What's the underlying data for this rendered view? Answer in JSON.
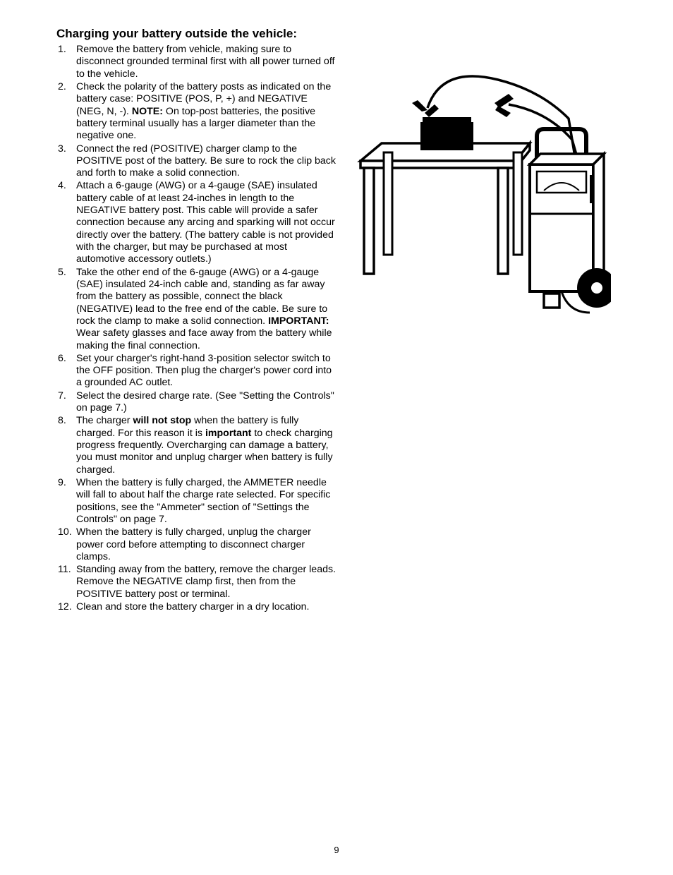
{
  "heading": "Charging your battery outside the vehicle:",
  "items": [
    {
      "n": "1.",
      "pre": "",
      "b1": "",
      "mid": "Remove the battery from vehicle, making sure to disconnect grounded terminal first with all power turned off to the vehicle.",
      "b2": "",
      "post": ""
    },
    {
      "n": "2.",
      "pre": "Check the polarity of the battery posts as indicated on the battery case: POSITIVE (POS, P, +) and NEGATIVE (NEG, N, -). ",
      "b1": "NOTE:",
      "mid": " On top-post batteries, the positive battery terminal usually has a larger diameter than the negative one.",
      "b2": "",
      "post": ""
    },
    {
      "n": "3.",
      "pre": "",
      "b1": "",
      "mid": "Connect the red (POSITIVE) charger clamp to the POSITIVE post of the battery. Be sure to rock the clip back and forth to make a solid connection.",
      "b2": "",
      "post": ""
    },
    {
      "n": "4.",
      "pre": "",
      "b1": "",
      "mid": "Attach a 6-gauge (AWG) or a 4-gauge (SAE) insulated battery cable of at least 24-inches in length to the NEGATIVE battery post. This cable will provide a safer connection because any arcing and sparking will not occur directly over the battery. (The battery cable is not provided with the charger, but may be purchased at most automotive accessory outlets.)",
      "b2": "",
      "post": ""
    },
    {
      "n": "5.",
      "pre": "Take the other end of the 6-gauge (AWG) or a 4-gauge (SAE) insulated 24-inch cable and, standing as far away from the battery as possible, connect the black (NEGATIVE) lead to the free end of the cable. Be sure to rock the clamp to make a solid connection. ",
      "b1": "IMPORTANT:",
      "mid": " Wear safety glasses and face away from the battery while making the final connection.",
      "b2": "",
      "post": ""
    },
    {
      "n": "6.",
      "pre": "",
      "b1": "",
      "mid": "Set your charger's right-hand 3-position selector switch to the OFF position. Then plug the charger's power cord into a grounded AC outlet.",
      "b2": "",
      "post": ""
    },
    {
      "n": "7.",
      "pre": "",
      "b1": "",
      "mid": "Select the desired charge rate. (See \"Setting the Controls\" on page 7.)",
      "b2": "",
      "post": ""
    },
    {
      "n": "8.",
      "pre": "The charger ",
      "b1": "will not stop",
      "mid": " when the battery is fully charged. For this reason it is ",
      "b2": "important",
      "post": " to check charging progress frequently. Overcharging can damage a battery, you must monitor and unplug charger when battery is fully charged."
    },
    {
      "n": "9.",
      "pre": "",
      "b1": "",
      "mid": "When the battery is fully charged, the AMMETER needle will fall to about half the charge rate selected. For specific positions, see the \"Ammeter\" section of \"Settings the Controls\" on page 7.",
      "b2": "",
      "post": ""
    },
    {
      "n": "10.",
      "pre": "",
      "b1": "",
      "mid": "When the battery is fully charged, unplug the charger power cord before attempting to disconnect charger clamps.",
      "b2": "",
      "post": ""
    },
    {
      "n": "11.",
      "pre": "",
      "b1": "",
      "mid": "Standing away from the battery, remove the charger leads. Remove the NEGATIVE clamp first, then from the POSITIVE battery post or terminal.",
      "b2": "",
      "post": ""
    },
    {
      "n": "12.",
      "pre": "",
      "b1": "",
      "mid": "Clean and store the battery charger in a dry location.",
      "b2": "",
      "post": ""
    }
  ],
  "pageNumber": "9",
  "figure": {
    "stroke": "#000000",
    "fill_black": "#000000",
    "fill_white": "#ffffff"
  }
}
